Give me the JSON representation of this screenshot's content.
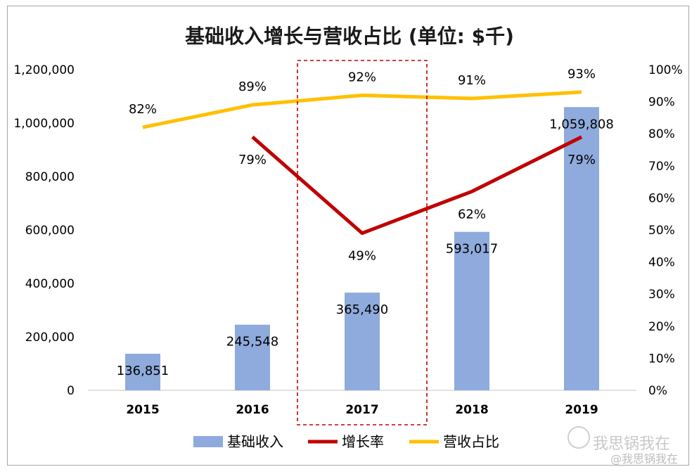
{
  "chart_data": {
    "type": "bar",
    "title": "基础收入增长与营收占比 (单位: $千)",
    "categories": [
      "2015",
      "2016",
      "2017",
      "2018",
      "2019"
    ],
    "bar_series": {
      "name": "基础收入",
      "values": [
        136851,
        245548,
        365490,
        593017,
        1059808
      ],
      "labels": [
        "136,851",
        "245,548",
        "365,490",
        "593,017",
        "1,059,808"
      ],
      "color": "#8FAADC"
    },
    "line_series": [
      {
        "name": "增长率",
        "values": [
          null,
          0.79,
          0.49,
          0.62,
          0.79
        ],
        "labels": [
          "",
          "79%",
          "49%",
          "62%",
          "79%"
        ],
        "color": "#C00000"
      },
      {
        "name": "营收占比",
        "values": [
          0.82,
          0.89,
          0.92,
          0.91,
          0.93
        ],
        "labels": [
          "82%",
          "89%",
          "92%",
          "91%",
          "93%"
        ],
        "color": "#FFC000"
      }
    ],
    "y_left": {
      "ylim": [
        0,
        1200000
      ],
      "ticks": [
        "0",
        "200,000",
        "400,000",
        "600,000",
        "800,000",
        "1,000,000",
        "1,200,000"
      ]
    },
    "y_right": {
      "ylim": [
        0,
        1
      ],
      "ticks": [
        "0%",
        "10%",
        "20%",
        "30%",
        "40%",
        "50%",
        "60%",
        "70%",
        "80%",
        "90%",
        "100%"
      ]
    },
    "highlight_category": "2017",
    "legend_position": "bottom",
    "grid": false
  },
  "watermark": {
    "line1": "我思锅我在",
    "line2": "@我思锅我在"
  }
}
